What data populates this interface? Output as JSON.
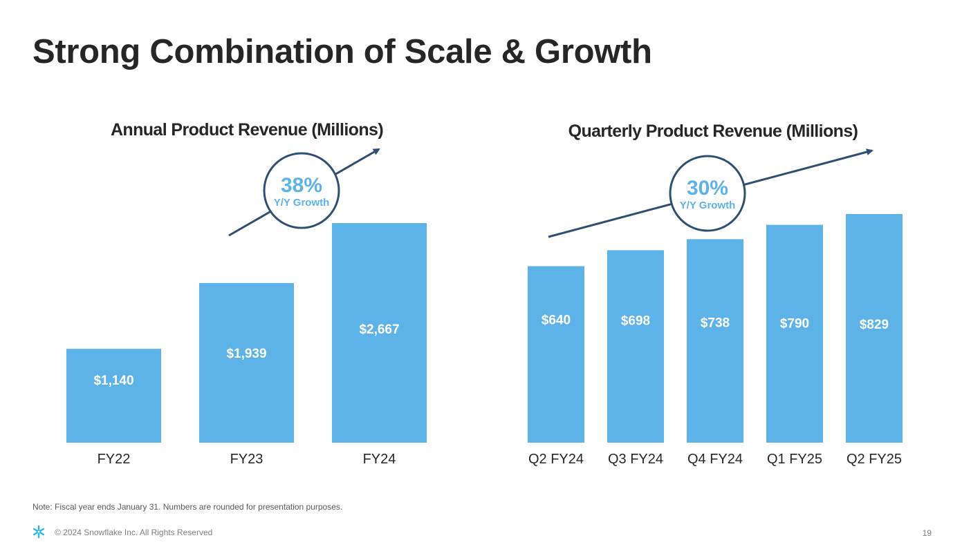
{
  "slide": {
    "title": "Strong Combination of Scale & Growth",
    "note": "Note: Fiscal year ends January 31. Numbers are rounded for presentation purposes.",
    "copyright": "© 2024 Snowflake Inc. All Rights Reserved",
    "page_number": "19",
    "logo_icon": "snowflake-logo-icon"
  },
  "colors": {
    "bar": "#5db3e8",
    "arrow": "#2e4e72",
    "text": "#262626",
    "growth_text": "#5db3e8"
  },
  "chart_data": [
    {
      "type": "bar",
      "title": "Annual Product Revenue (Millions)",
      "categories": [
        "FY22",
        "FY23",
        "FY24"
      ],
      "values": [
        1140,
        1939,
        2667
      ],
      "value_labels": [
        "$1,140",
        "$1,939",
        "$2,667"
      ],
      "growth": {
        "value": "38%",
        "label": "Y/Y Growth"
      },
      "xlabel": "",
      "ylabel": "",
      "grid": false
    },
    {
      "type": "bar",
      "title": "Quarterly Product Revenue (Millions)",
      "categories": [
        "Q2 FY24",
        "Q3 FY24",
        "Q4 FY24",
        "Q1 FY25",
        "Q2 FY25"
      ],
      "values": [
        640,
        698,
        738,
        790,
        829
      ],
      "value_labels": [
        "$640",
        "$698",
        "$738",
        "$790",
        "$829"
      ],
      "growth": {
        "value": "30%",
        "label": "Y/Y Growth"
      },
      "xlabel": "",
      "ylabel": "",
      "grid": false
    }
  ]
}
